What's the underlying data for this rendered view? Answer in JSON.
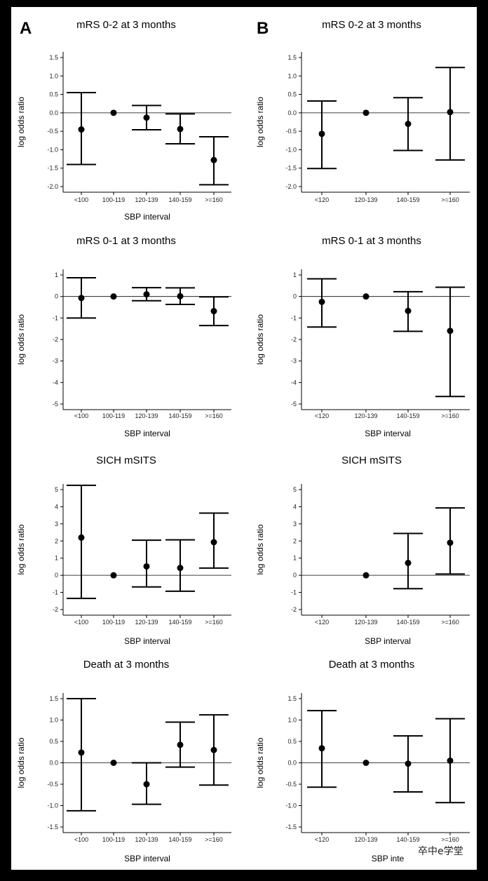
{
  "panel_labels": [
    "A",
    "B"
  ],
  "watermark": "卒中e学堂",
  "chart_data": [
    {
      "type": "scatter",
      "panel": "A",
      "title": "mRS 0-2 at 3 months",
      "xlabel": "SBP interval",
      "ylabel": "log odds ratio",
      "categories": [
        "<100",
        "100-119",
        "120-139",
        "140-159",
        ">=160"
      ],
      "yticks": [
        "1.5",
        "1.0",
        "0.5",
        "0.0",
        "-0.5",
        "-1.0",
        "-1.5",
        "-2.0"
      ],
      "ylim": [
        -2.1,
        1.6
      ],
      "points": [
        {
          "y": -0.45,
          "lo": -1.4,
          "hi": 0.55
        },
        {
          "y": 0.0,
          "lo": null,
          "hi": null
        },
        {
          "y": -0.13,
          "lo": -0.46,
          "hi": 0.2
        },
        {
          "y": -0.44,
          "lo": -0.84,
          "hi": -0.03
        },
        {
          "y": -1.28,
          "lo": -1.95,
          "hi": -0.65
        }
      ]
    },
    {
      "type": "scatter",
      "panel": "B",
      "title": "mRS 0-2 at 3 months",
      "xlabel": "",
      "ylabel": "log odds ratio",
      "categories": [
        "<120",
        "120-139",
        "140-159",
        ">=160"
      ],
      "yticks": [
        "1.5",
        "1.0",
        "0.5",
        "0.0",
        "-0.5",
        "-1.0",
        "-1.5",
        "-2.0"
      ],
      "ylim": [
        -2.1,
        1.6
      ],
      "points": [
        {
          "y": -0.57,
          "lo": -1.51,
          "hi": 0.32
        },
        {
          "y": 0.0,
          "lo": null,
          "hi": null
        },
        {
          "y": -0.3,
          "lo": -1.02,
          "hi": 0.41
        },
        {
          "y": 0.02,
          "lo": -1.28,
          "hi": 1.23
        }
      ]
    },
    {
      "type": "scatter",
      "panel": "A",
      "title": "mRS 0-1 at 3 months",
      "xlabel": "SBP interval",
      "ylabel": "log odds ratio",
      "categories": [
        "<100",
        "100-119",
        "120-139",
        "140-159",
        ">=160"
      ],
      "yticks": [
        "1",
        "0",
        "-1",
        "-2",
        "-3",
        "-4",
        "-5"
      ],
      "ylim": [
        -5.1,
        1.2
      ],
      "points": [
        {
          "y": -0.07,
          "lo": -1.0,
          "hi": 0.87
        },
        {
          "y": 0.0,
          "lo": null,
          "hi": null
        },
        {
          "y": 0.1,
          "lo": -0.2,
          "hi": 0.41
        },
        {
          "y": 0.01,
          "lo": -0.37,
          "hi": 0.4
        },
        {
          "y": -0.68,
          "lo": -1.35,
          "hi": -0.02
        }
      ]
    },
    {
      "type": "scatter",
      "panel": "B",
      "title": "mRS 0-1 at 3 months",
      "xlabel": "SBP interval",
      "ylabel": "log odds ratio",
      "categories": [
        "<120",
        "120-139",
        "140-159",
        ">=160"
      ],
      "yticks": [
        "1",
        "0",
        "-1",
        "-2",
        "-3",
        "-4",
        "-5"
      ],
      "ylim": [
        -5.1,
        1.2
      ],
      "points": [
        {
          "y": -0.25,
          "lo": -1.42,
          "hi": 0.82
        },
        {
          "y": 0.0,
          "lo": null,
          "hi": null
        },
        {
          "y": -0.67,
          "lo": -1.62,
          "hi": 0.22
        },
        {
          "y": -1.6,
          "lo": -4.65,
          "hi": 0.43
        }
      ]
    },
    {
      "type": "scatter",
      "panel": "A",
      "title": "SICH mSITS",
      "xlabel": "SBP interval",
      "ylabel": "log odds ratio",
      "categories": [
        "<100",
        "100-119",
        "120-139",
        "140-159",
        ">=160"
      ],
      "yticks": [
        "5",
        "4",
        "3",
        "2",
        "1",
        "0",
        "-1",
        "-2"
      ],
      "ylim": [
        -2.2,
        5.5
      ],
      "points": [
        {
          "y": 2.2,
          "lo": -1.35,
          "hi": 5.25
        },
        {
          "y": 0.0,
          "lo": null,
          "hi": null
        },
        {
          "y": 0.52,
          "lo": -0.68,
          "hi": 2.05
        },
        {
          "y": 0.43,
          "lo": -0.93,
          "hi": 2.07
        },
        {
          "y": 1.93,
          "lo": 0.42,
          "hi": 3.63
        }
      ]
    },
    {
      "type": "scatter",
      "panel": "B",
      "title": "SICH mSITS",
      "xlabel": "SBP interval",
      "ylabel": "log odds ratio",
      "categories": [
        "<120",
        "120-139",
        "140-159",
        ">=160"
      ],
      "yticks": [
        "5",
        "4",
        "3",
        "2",
        "1",
        "0",
        "-1",
        "-2"
      ],
      "ylim": [
        -2.2,
        5.5
      ],
      "points": [
        {
          "y": null,
          "lo": null,
          "hi": null
        },
        {
          "y": 0.0,
          "lo": null,
          "hi": null
        },
        {
          "y": 0.72,
          "lo": -0.78,
          "hi": 2.44
        },
        {
          "y": 1.9,
          "lo": 0.07,
          "hi": 3.93
        }
      ]
    },
    {
      "type": "scatter",
      "panel": "A",
      "title": "Death at 3 months",
      "xlabel": "SBP interval",
      "ylabel": "log odds ratio",
      "categories": [
        "<100",
        "100-119",
        "120-139",
        "140-159",
        ">=160"
      ],
      "yticks": [
        "1.5",
        "1.0",
        "0.5",
        "0.0",
        "-0.5",
        "-1.0",
        "-1.5"
      ],
      "ylim": [
        -1.6,
        1.6
      ],
      "points": [
        {
          "y": 0.24,
          "lo": -1.12,
          "hi": 1.5
        },
        {
          "y": 0.0,
          "lo": null,
          "hi": null
        },
        {
          "y": -0.5,
          "lo": -0.97,
          "hi": 0.0
        },
        {
          "y": 0.42,
          "lo": -0.1,
          "hi": 0.95
        },
        {
          "y": 0.3,
          "lo": -0.52,
          "hi": 1.12
        }
      ]
    },
    {
      "type": "scatter",
      "panel": "B",
      "title": "Death at 3 months",
      "xlabel": "SBP inte",
      "ylabel": "log odds ratio",
      "categories": [
        "<120",
        "120-139",
        "140-159",
        ">=160"
      ],
      "yticks": [
        "1.5",
        "1.0",
        "0.5",
        "0.0",
        "-0.5",
        "-1.0",
        "-1.5"
      ],
      "ylim": [
        -1.6,
        1.6
      ],
      "points": [
        {
          "y": 0.34,
          "lo": -0.57,
          "hi": 1.22
        },
        {
          "y": 0.0,
          "lo": null,
          "hi": null
        },
        {
          "y": -0.02,
          "lo": -0.68,
          "hi": 0.63
        },
        {
          "y": 0.05,
          "lo": -0.93,
          "hi": 1.03
        }
      ]
    }
  ]
}
